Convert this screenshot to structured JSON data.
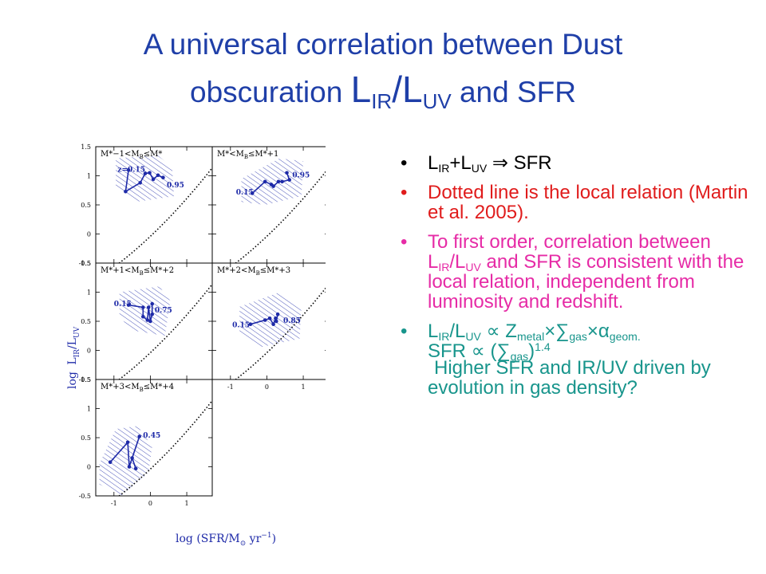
{
  "title": {
    "line1": "A universal correlation between Dust",
    "line2_pre": "obscuration",
    "L1": "L",
    "sub1": "IR",
    "slash": "/",
    "L2": "L",
    "sub2": "UV",
    "line2_post": "and SFR"
  },
  "bullets": {
    "marker": "•",
    "b1": {
      "L1": "L",
      "sub1": "IR",
      "plus": "+",
      "L2": "L",
      "sub2": "UV",
      "rest": " ⇒ SFR"
    },
    "b2": {
      "text": "Dotted line is the local relation (Martin et al. 2005)."
    },
    "b3": {
      "pre": "To first order, correlation between L",
      "sub1": "IR",
      "mid": "/L",
      "sub2": "UV",
      "post": " and SFR is consistent with the local relation,  independent from luminosity and redshift."
    },
    "b4": {
      "p1": "L",
      "s1": "IR",
      "p2": "/L",
      "s2": "UV",
      "p3": " ∝ Z",
      "s3": "metal",
      "p4": "×∑",
      "s4": "gas",
      "p5": "×α",
      "s5": "geom.",
      "line2_a": "SFR ∝ (∑",
      "line2_s": "gas",
      "line2_b": ")",
      "line2_sup": "1.4",
      "line3": " Higher SFR and IR/UV driven by evolution in gas density?"
    }
  },
  "chart_data": {
    "type": "scatter",
    "y_label_parts": {
      "log": "log",
      "L": "L",
      "ir": "IR",
      "slash": "/L",
      "uv": "UV"
    },
    "x_label_parts": {
      "pre": "log  (SFR/M",
      "sun": "⊙",
      "mid": " yr",
      "sup": "−1",
      "post": ")"
    },
    "xlim": [
      -1.5,
      1.7
    ],
    "ylim": [
      -0.5,
      1.5
    ],
    "y_ticks": [
      "1.5",
      "1",
      "0.5",
      "0",
      "-0.5"
    ],
    "x_ticks": [
      "-1",
      "0",
      "1"
    ],
    "local_relation": {
      "style": "dotted",
      "y_at_x0": -0.04,
      "y_at_x1": 0.55,
      "curvature": 0.06
    },
    "panels": [
      {
        "id": "p1",
        "label_core": "−1<M",
        "label_core2": "≤M*",
        "label_pre": "M*",
        "label_B": "B",
        "annot": [
          {
            "text": "z=0.15",
            "x": -0.9,
            "y": 1.07
          },
          {
            "text": "0.95",
            "x": 0.45,
            "y": 0.8
          }
        ],
        "series": [
          [
            -0.6,
            1.1
          ],
          [
            -0.68,
            0.73
          ],
          [
            -0.28,
            0.88
          ],
          [
            -0.14,
            1.04
          ],
          [
            -0.02,
            1.05
          ],
          [
            0.08,
            0.94
          ],
          [
            0.21,
            1.01
          ],
          [
            0.35,
            0.97
          ]
        ],
        "hatch": [
          [
            -0.95,
            1.3
          ],
          [
            0.2,
            1.35
          ],
          [
            0.6,
            1.15
          ],
          [
            0.65,
            0.65
          ],
          [
            -0.4,
            0.55
          ],
          [
            -0.95,
            0.8
          ]
        ]
      },
      {
        "id": "p2",
        "label_core": "<M",
        "label_core2": "≤M*+1",
        "label_pre": "M*",
        "label_B": "B",
        "annot": [
          {
            "text": "0.15",
            "x": -0.85,
            "y": 0.68
          },
          {
            "text": "0.95",
            "x": 0.7,
            "y": 0.97
          }
        ],
        "series": [
          [
            -0.4,
            0.7
          ],
          [
            -0.05,
            0.9
          ],
          [
            0.12,
            0.85
          ],
          [
            0.18,
            0.82
          ],
          [
            0.32,
            0.9
          ],
          [
            0.42,
            0.9
          ],
          [
            0.62,
            0.93
          ],
          [
            0.55,
            1.05
          ]
        ],
        "hatch": [
          [
            -0.7,
            0.95
          ],
          [
            0.35,
            1.3
          ],
          [
            1.0,
            1.25
          ],
          [
            0.95,
            0.65
          ],
          [
            -0.05,
            0.5
          ],
          [
            -0.7,
            0.55
          ]
        ]
      },
      {
        "id": "p3",
        "label_core": "+1<M",
        "label_core2": "≤M*+2",
        "label_pre": "M*",
        "label_B": "B",
        "annot": [
          {
            "text": "0.15",
            "x": -1.0,
            "y": 0.76
          },
          {
            "text": "0.75",
            "x": 0.12,
            "y": 0.65
          }
        ],
        "series": [
          [
            -0.6,
            0.78
          ],
          [
            -0.2,
            0.74
          ],
          [
            -0.2,
            0.58
          ],
          [
            -0.08,
            0.52
          ],
          [
            -0.05,
            0.74
          ],
          [
            0.0,
            0.5
          ],
          [
            0.05,
            0.62
          ],
          [
            0.05,
            0.8
          ]
        ],
        "hatch": [
          [
            -0.85,
            1.0
          ],
          [
            0.25,
            1.1
          ],
          [
            0.55,
            0.85
          ],
          [
            0.4,
            0.25
          ],
          [
            -0.55,
            0.35
          ],
          [
            -0.85,
            0.6
          ]
        ]
      },
      {
        "id": "p4",
        "label_core": "+2<M",
        "label_core2": "≤M*+3",
        "label_pre": "M*",
        "label_B": "B",
        "annot": [
          {
            "text": "0.15",
            "x": -0.95,
            "y": 0.4
          },
          {
            "text": "0.85",
            "x": 0.45,
            "y": 0.47
          }
        ],
        "series": [
          [
            -0.45,
            0.45
          ],
          [
            -0.05,
            0.52
          ],
          [
            0.08,
            0.55
          ],
          [
            0.18,
            0.45
          ],
          [
            0.24,
            0.55
          ],
          [
            0.26,
            0.5
          ],
          [
            0.3,
            0.62
          ]
        ],
        "hatch": [
          [
            -0.75,
            0.75
          ],
          [
            0.35,
            1.0
          ],
          [
            0.95,
            0.75
          ],
          [
            0.9,
            0.2
          ],
          [
            -0.2,
            0.05
          ],
          [
            -0.75,
            0.3
          ]
        ]
      },
      {
        "id": "p5",
        "label_core": "+3<M",
        "label_core2": "≤M*+4",
        "label_pre": "M*",
        "label_B": "B",
        "annot": [
          {
            "text": "0.45",
            "x": -0.2,
            "y": 0.5
          }
        ],
        "series": [
          [
            -1.1,
            0.08
          ],
          [
            -0.62,
            0.42
          ],
          [
            -0.58,
            0.0
          ],
          [
            -0.3,
            0.52
          ],
          [
            -0.5,
            0.15
          ],
          [
            -0.4,
            -0.03
          ]
        ],
        "hatch": [
          [
            -1.4,
            0.05
          ],
          [
            -0.95,
            0.65
          ],
          [
            -0.35,
            0.7
          ],
          [
            0.05,
            0.35
          ],
          [
            -0.05,
            -0.1
          ],
          [
            -0.8,
            -0.5
          ],
          [
            -1.4,
            -0.3
          ]
        ]
      }
    ]
  }
}
